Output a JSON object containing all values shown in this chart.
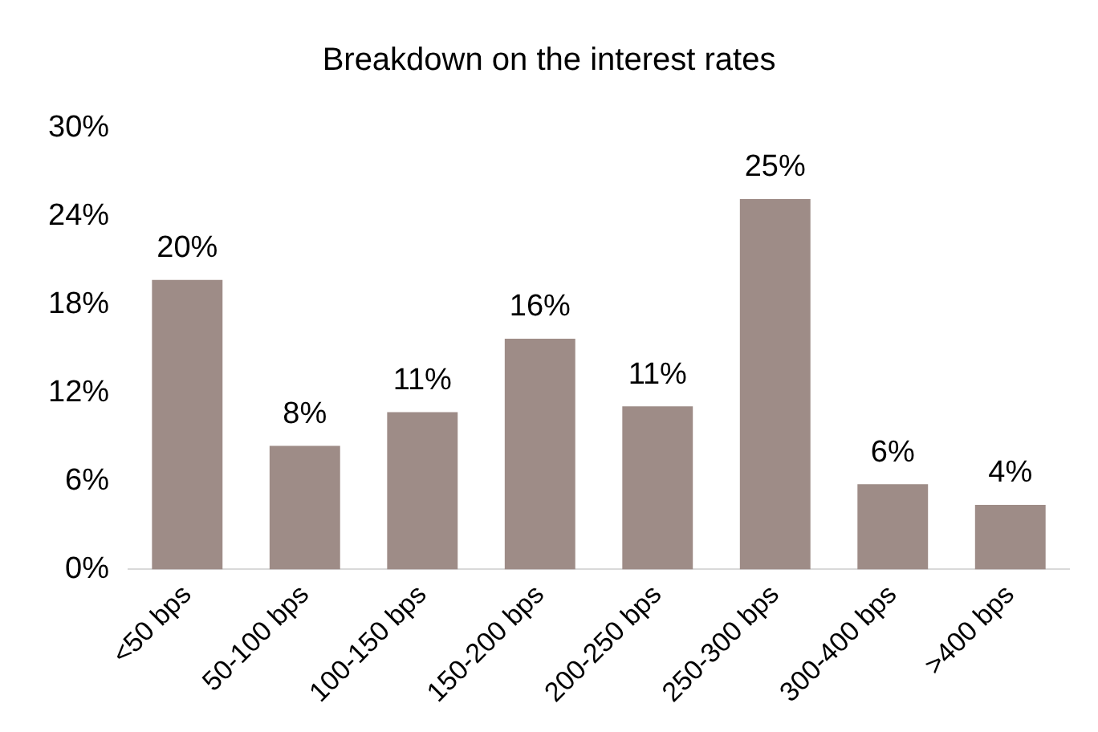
{
  "chart_data": {
    "type": "bar",
    "title": "Breakdown on the interest rates",
    "categories": [
      "<50 bps",
      "50-100 bps",
      "100-150 bps",
      "150-200 bps",
      "200-250 bps",
      "250-300 bps",
      "300-400 bps",
      ">400 bps"
    ],
    "values": [
      19.7,
      8.4,
      10.7,
      15.7,
      11.1,
      25.2,
      5.8,
      4.4
    ],
    "value_labels": [
      "20%",
      "8%",
      "11%",
      "16%",
      "11%",
      "25%",
      "6%",
      "4%"
    ],
    "color": "#9e8c87",
    "ylim": [
      0,
      30
    ],
    "yticks": [
      {
        "value": 0,
        "label": "0%"
      },
      {
        "value": 6,
        "label": "6%"
      },
      {
        "value": 12,
        "label": "12%"
      },
      {
        "value": 18,
        "label": "18%"
      },
      {
        "value": 24,
        "label": "24%"
      },
      {
        "value": 30,
        "label": "30%"
      }
    ],
    "grid": false,
    "legend": false
  }
}
